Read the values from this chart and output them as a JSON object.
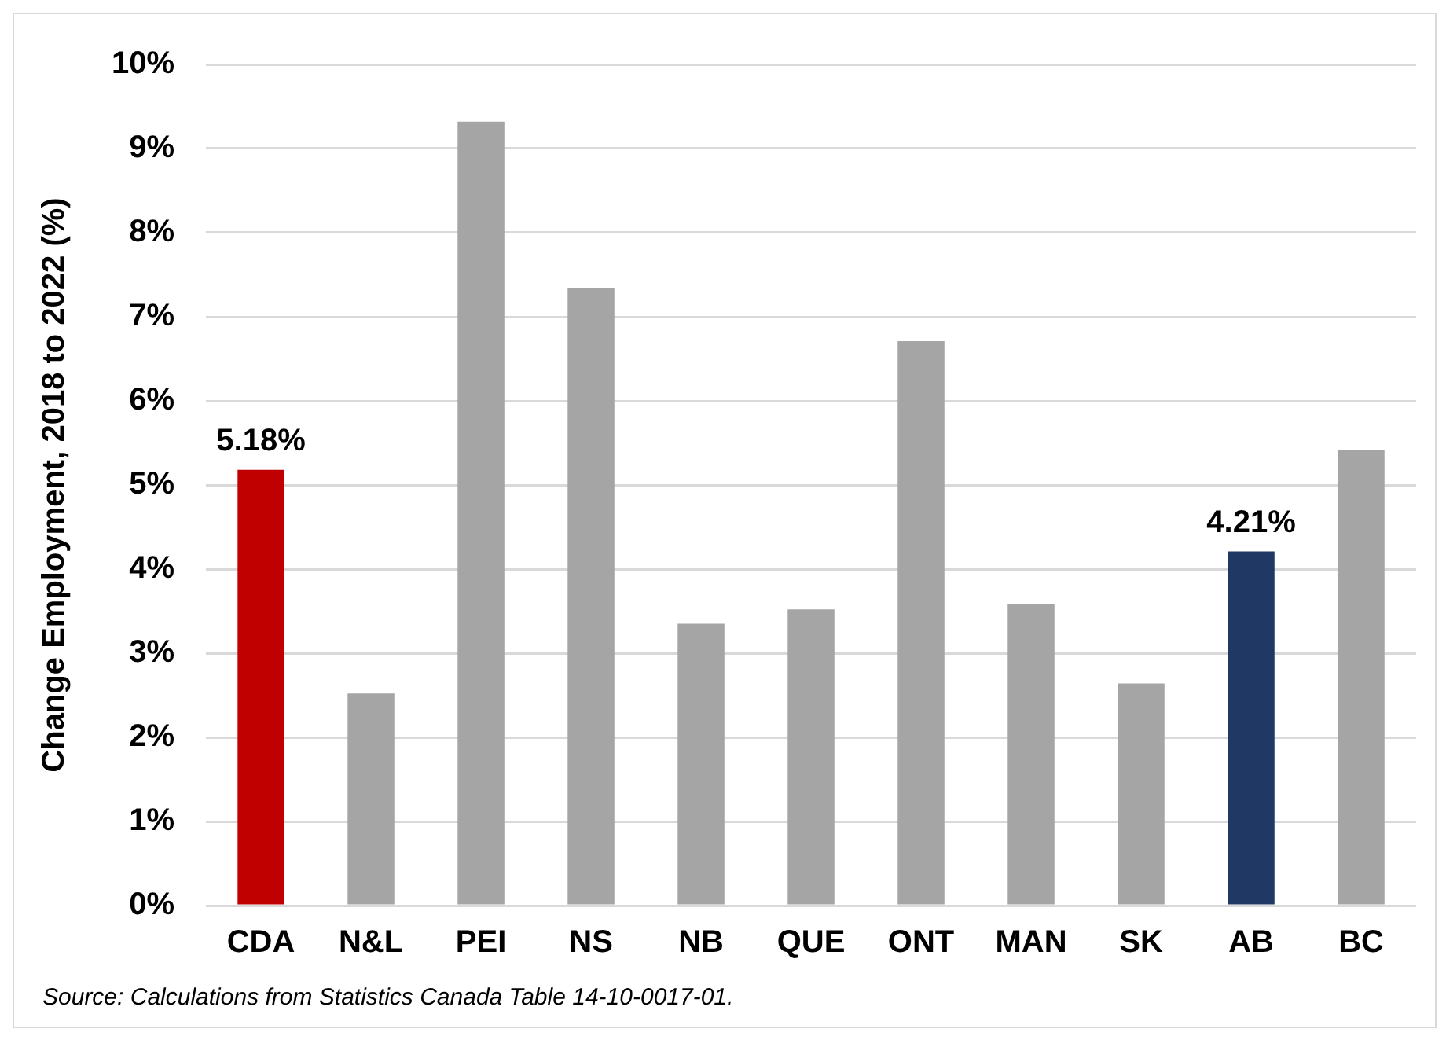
{
  "chart_data": {
    "type": "bar",
    "ylabel": "Change Employment, 2018 to 2022 (%)",
    "categories": [
      "CDA",
      "N&L",
      "PEI",
      "NS",
      "NB",
      "QUE",
      "ONT",
      "MAN",
      "SK",
      "AB",
      "BC"
    ],
    "values": [
      5.18,
      2.52,
      9.32,
      7.34,
      3.35,
      3.52,
      6.71,
      3.58,
      2.64,
      4.21,
      5.42
    ],
    "colors": [
      "#c00000",
      "#a5a5a5",
      "#a5a5a5",
      "#a5a5a5",
      "#a5a5a5",
      "#a5a5a5",
      "#a5a5a5",
      "#a5a5a5",
      "#a5a5a5",
      "#203864",
      "#a5a5a5"
    ],
    "value_labels": [
      "5.18%",
      null,
      null,
      null,
      null,
      null,
      null,
      null,
      null,
      "4.21%",
      null
    ],
    "ylim": [
      0,
      10
    ],
    "yticks": [
      {
        "value": 0,
        "label": "0%"
      },
      {
        "value": 1,
        "label": "1%"
      },
      {
        "value": 2,
        "label": "2%"
      },
      {
        "value": 3,
        "label": "3%"
      },
      {
        "value": 4,
        "label": "4%"
      },
      {
        "value": 5,
        "label": "5%"
      },
      {
        "value": 6,
        "label": "6%"
      },
      {
        "value": 7,
        "label": "7%"
      },
      {
        "value": 8,
        "label": "8%"
      },
      {
        "value": 9,
        "label": "9%"
      },
      {
        "value": 10,
        "label": "10%"
      }
    ],
    "grid": "y",
    "legend": false,
    "annotations": [
      "Source: Calculations from Statistics Canada Table 14-10-0017-01."
    ]
  }
}
